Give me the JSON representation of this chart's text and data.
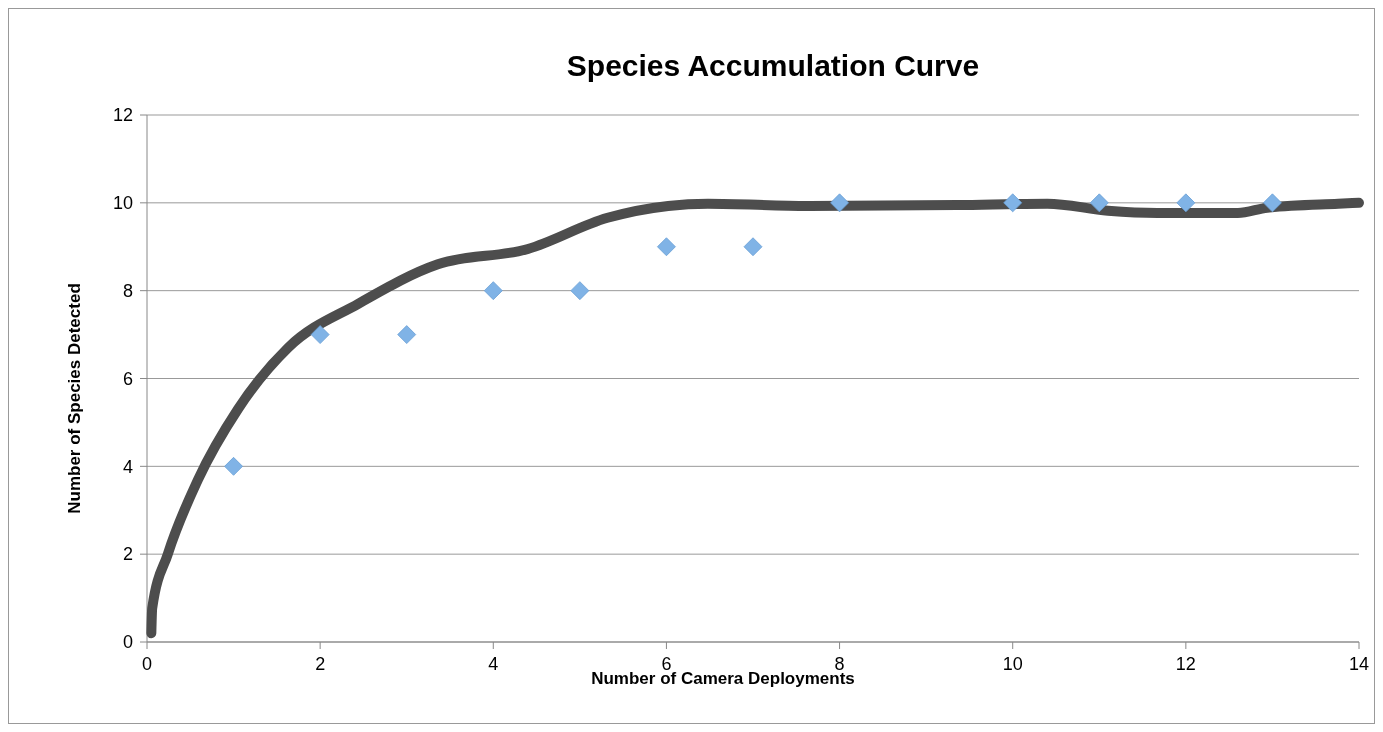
{
  "chart_data": {
    "type": "scatter",
    "title": "Species Accumulation Curve",
    "xlabel": "Number of Camera Deployments",
    "ylabel": "Number of Species Detected",
    "xlim": [
      0,
      14
    ],
    "xticks": [
      0,
      2,
      4,
      6,
      8,
      10,
      12,
      14
    ],
    "ylim": [
      0,
      12
    ],
    "yticks": [
      0,
      2,
      4,
      6,
      8,
      10,
      12
    ],
    "grid": "y",
    "series": [
      {
        "color": "#80b3e6",
        "marker": "diamond",
        "x": [
          1,
          2,
          3,
          4,
          5,
          6,
          7,
          8,
          10,
          11,
          12,
          13
        ],
        "values": [
          4,
          7,
          7,
          8,
          8,
          9,
          9,
          10,
          10,
          10,
          10,
          10
        ]
      },
      {
        "type": "line",
        "color": "#4d4d4d",
        "marker": "none",
        "line_style": "solid",
        "x": [
          0.05,
          0.06,
          0.24,
          0.59,
          1.05,
          1.63,
          2.44,
          3.36,
          4.4,
          5.32,
          6.02,
          6.48,
          7.63,
          9.36,
          10.4,
          11.1,
          11.67,
          12.6,
          12.94,
          13.76,
          14
        ],
        "values": [
          0.2,
          0.77,
          2.0,
          3.7,
          5.3,
          6.7,
          7.7,
          8.6,
          8.95,
          9.66,
          9.93,
          9.98,
          9.93,
          9.95,
          9.98,
          9.82,
          9.77,
          9.77,
          9.89,
          9.98,
          10.0
        ]
      }
    ]
  }
}
